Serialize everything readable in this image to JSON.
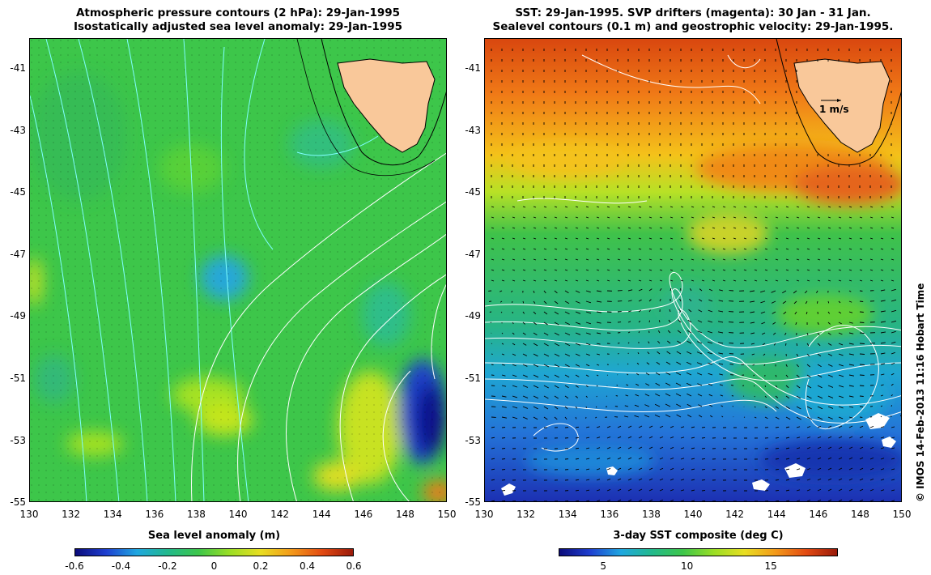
{
  "left": {
    "title_line1": "Atmospheric pressure contours (2 hPa): 29-Jan-1995",
    "title_line2": "Isostatically adjusted sea level anomaly: 29-Jan-1995",
    "colorbar_label": "Sea level anomaly (m)",
    "colorbar_ticks": [
      "-0.6",
      "-0.4",
      "-0.2",
      "0",
      "0.2",
      "0.4",
      "0.6"
    ]
  },
  "right": {
    "title_line1": "SST: 29-Jan-1995. SVP drifters (magenta): 30 Jan - 31 Jan.",
    "title_line2": "Sealevel contours (0.1 m) and geostrophic velocity: 29-Jan-1995.",
    "colorbar_label": "3-day SST composite (deg C)",
    "colorbar_ticks": [
      "5",
      "10",
      "15"
    ],
    "velocity_scale_label": "1 m/s"
  },
  "axes": {
    "y_ticks": [
      "-41",
      "-43",
      "-45",
      "-47",
      "-49",
      "-51",
      "-53",
      "-55"
    ],
    "x_ticks": [
      "130",
      "132",
      "134",
      "136",
      "138",
      "140",
      "142",
      "144",
      "146",
      "148",
      "150"
    ]
  },
  "credit": "© IMOS 14-Feb-2013 11:16 Hobart Time",
  "colors": {
    "land": "#f9c89a",
    "sla_background": "#3dc64a",
    "pressure_contour": "#7fffff",
    "sea_level_contour": "#ffffff"
  }
}
